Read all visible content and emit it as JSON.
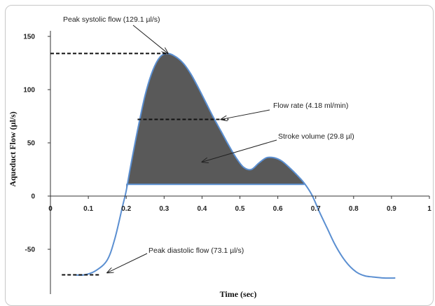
{
  "chart_data": {
    "type": "line",
    "title": "",
    "xlabel": "Time (sec)",
    "ylabel": "Aqueduct Flow (µl/s)",
    "xlim": [
      0,
      1
    ],
    "ylim": [
      -80,
      150
    ],
    "x_ticks": [
      "0",
      "0.1",
      "0.2",
      "0.3",
      "0.4",
      "0.5",
      "0.6",
      "0.7",
      "0.8",
      "0.9",
      "1"
    ],
    "y_ticks": [
      "150",
      "100",
      "50",
      "0",
      "-50"
    ],
    "grid": false,
    "line_color": "#5b8fd1",
    "fill_color": "#595959",
    "series": [
      {
        "x": [
          0.06,
          0.09,
          0.12,
          0.15,
          0.17,
          0.19,
          0.2,
          0.21,
          0.23,
          0.25,
          0.27,
          0.29,
          0.31,
          0.33,
          0.35,
          0.37,
          0.39,
          0.41,
          0.43,
          0.45,
          0.47,
          0.49,
          0.51,
          0.53,
          0.55,
          0.57,
          0.59,
          0.61,
          0.63,
          0.65,
          0.67,
          0.69,
          0.71,
          0.73,
          0.75,
          0.77,
          0.79,
          0.81,
          0.83,
          0.85,
          0.88,
          0.91
        ],
        "y": [
          -74,
          -74,
          -70,
          -60,
          -40,
          -10,
          5,
          25,
          62,
          95,
          118,
          131,
          134,
          131,
          125,
          115,
          102,
          88,
          74,
          61,
          48,
          36,
          27,
          25,
          31,
          36,
          36,
          33,
          27,
          20,
          12,
          1,
          -15,
          -30,
          -45,
          -57,
          -66,
          -72,
          -75,
          -76,
          -77,
          -77
        ]
      }
    ],
    "shaded_region": {
      "x_start": 0.2,
      "x_end": 0.67,
      "baseline": 11
    },
    "reference_lines": [
      {
        "x_start": 0.0,
        "x_end": 0.31,
        "y": 134
      },
      {
        "x_start": 0.23,
        "x_end": 0.47,
        "y": 72
      },
      {
        "x_start": 0.03,
        "x_end": 0.13,
        "y": -74
      }
    ],
    "annotations": [
      {
        "text": "Peak systolic flow (129.1 µl/s)",
        "target_x": 0.31,
        "target_y": 134
      },
      {
        "text": "Flow rate (4.18 ml/min)",
        "target_x": 0.45,
        "target_y": 72
      },
      {
        "text": "Stroke volume (29.8 µl)",
        "target_x": 0.4,
        "target_y": 32
      },
      {
        "text": "Peak diastolic flow (73.1 µl/s)",
        "target_x": 0.15,
        "target_y": -72
      }
    ]
  }
}
